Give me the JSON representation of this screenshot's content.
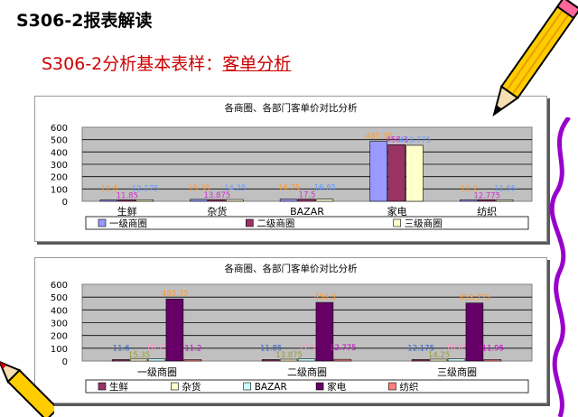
{
  "slide": {
    "title": "S306-2报表解读",
    "subtitle_prefix": "S306-2分析基本表样：",
    "subtitle_highlight": "客单分析"
  },
  "colors": {
    "tier1": "#9999ff",
    "tier2": "#993366",
    "tier3": "#ffffcc",
    "fresh": "#993366",
    "grocery": "#ffffcc",
    "bazar": "#ccffff",
    "appliance": "#660066",
    "textile": "#ff8080",
    "plot_bg": "#c0c0c0"
  },
  "chart_data": [
    {
      "type": "bar",
      "title": "各商圈、各部门客单价对比分析",
      "categories": [
        "生鲜",
        "杂货",
        "BAZAR",
        "家电",
        "纺织"
      ],
      "series": [
        {
          "name": "一级商圈",
          "values": [
            11.6,
            15.35,
            16.75,
            485.35,
            11.2
          ]
        },
        {
          "name": "二级商圈",
          "values": [
            11.85,
            13.875,
            17.5,
            458.3,
            12.775
          ]
        },
        {
          "name": "三级商圈",
          "values": [
            12.175,
            14.25,
            16.85,
            453.775,
            11.95
          ]
        }
      ],
      "data_labels": [
        [
          "11.6",
          "11.85",
          "12.175"
        ],
        [
          "15.35",
          "13.875",
          "14.25"
        ],
        [
          "16.75",
          "17.5",
          "16.85"
        ],
        [
          "485.35",
          "458.3",
          "453.775"
        ],
        [
          "11.2",
          "12.775",
          "11.95"
        ]
      ],
      "yticks": [
        "0",
        "100",
        "200",
        "300",
        "400",
        "500",
        "600"
      ],
      "ylim": [
        0,
        600
      ],
      "grid": true,
      "legend": "bottom"
    },
    {
      "type": "bar",
      "title": "各商圈、各部门客单价对比分析",
      "categories": [
        "一级商圈",
        "二级商圈",
        "三级商圈"
      ],
      "series": [
        {
          "name": "生鲜",
          "values": [
            11.6,
            11.85,
            12.175
          ]
        },
        {
          "name": "杂货",
          "values": [
            15.35,
            13.875,
            14.25
          ]
        },
        {
          "name": "BAZAR",
          "values": [
            16.75,
            17.5,
            16.85
          ]
        },
        {
          "name": "家电",
          "values": [
            485.35,
            458.3,
            453.775
          ]
        },
        {
          "name": "纺织",
          "values": [
            11.2,
            12.775,
            11.95
          ]
        }
      ],
      "data_labels": [
        [
          "11.6",
          "15.35",
          "16.75",
          "485.35",
          "11.2"
        ],
        [
          "11.85",
          "13.875",
          "17.5",
          "458.3",
          "12.775"
        ],
        [
          "12.175",
          "14.25",
          "16.85",
          "453.775",
          "11.95"
        ]
      ],
      "yticks": [
        "0",
        "100",
        "200",
        "300",
        "400",
        "500",
        "600"
      ],
      "ylim": [
        0,
        600
      ],
      "grid": true,
      "legend": "bottom"
    }
  ]
}
